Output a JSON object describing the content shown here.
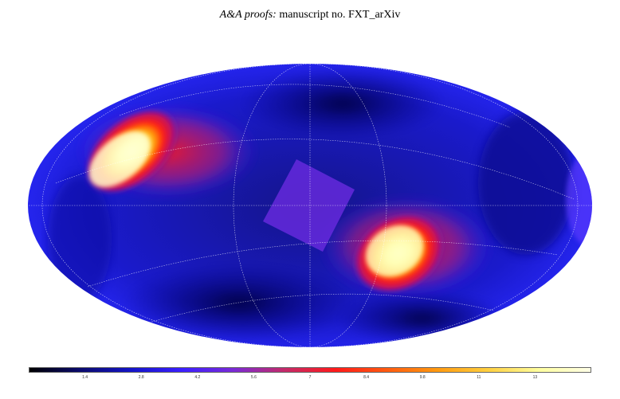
{
  "header": {
    "journal_italic": "A&A proofs:",
    "manuscript": "manuscript no. FXT_arXiv"
  },
  "figure": {
    "type": "mollweide-sky-map",
    "colormap": [
      "#000000",
      "#0a0a6e",
      "#1414c8",
      "#3b1fff",
      "#7a2ad6",
      "#c42a6a",
      "#ff1a1a",
      "#ff5a10",
      "#ff9a10",
      "#ffd040",
      "#ffffa0",
      "#ffffe8"
    ],
    "colorbar": {
      "min": 0,
      "max": 14,
      "ticks": [
        "1.4",
        "2.8",
        "4.2",
        "5.6",
        "7",
        "8.4",
        "9.8",
        "11",
        "13"
      ],
      "tick_values": [
        1.4,
        2.8,
        4.2,
        5.6,
        7,
        8.4,
        9.8,
        11.2,
        12.6
      ]
    },
    "graticule": true
  }
}
